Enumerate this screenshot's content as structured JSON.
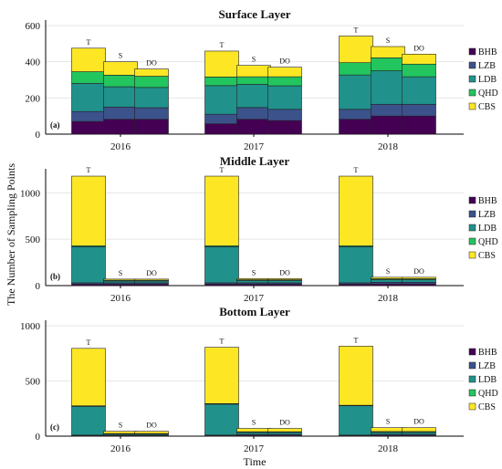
{
  "y_axis_label": "The Number of Sampling Points",
  "x_axis_label": "Time",
  "colors": {
    "BHB": "#440154",
    "LZB": "#3b528b",
    "LDB": "#21918c",
    "QHD": "#22c55e",
    "CBS": "#fde725"
  },
  "chart_data": [
    {
      "type": "bar",
      "stacked": true,
      "title": "Surface Layer",
      "panel_label": "(a)",
      "ylim": [
        0,
        600
      ],
      "yticks": [
        0,
        200,
        400,
        600
      ],
      "grid": true,
      "legend": "right",
      "stack_order": [
        "BHB",
        "LZB",
        "LDB",
        "QHD",
        "CBS"
      ],
      "groups": [
        "2016",
        "2017",
        "2018"
      ],
      "bars_per_group": [
        "T",
        "S",
        "DO"
      ],
      "values": {
        "2016": {
          "T": [
            70,
            55,
            155,
            65,
            130
          ],
          "S": [
            82,
            68,
            112,
            64,
            74
          ],
          "DO": [
            82,
            64,
            112,
            62,
            40
          ]
        },
        "2017": {
          "T": [
            57,
            53,
            158,
            48,
            143
          ],
          "S": [
            82,
            65,
            128,
            42,
            63
          ],
          "DO": [
            75,
            62,
            130,
            50,
            53
          ]
        },
        "2018": {
          "T": [
            82,
            55,
            190,
            68,
            147
          ],
          "S": [
            100,
            65,
            185,
            72,
            62
          ],
          "DO": [
            100,
            65,
            152,
            70,
            55
          ]
        }
      }
    },
    {
      "type": "bar",
      "stacked": true,
      "title": "Middle Layer",
      "panel_label": "(b)",
      "ylim": [
        0,
        1200
      ],
      "yticks": [
        0,
        500,
        1000
      ],
      "grid": true,
      "legend": "right",
      "stack_order": [
        "BHB",
        "LZB",
        "LDB",
        "QHD",
        "CBS"
      ],
      "groups": [
        "2016",
        "2017",
        "2018"
      ],
      "bars_per_group": [
        "T",
        "S",
        "DO"
      ],
      "values": {
        "2016": {
          "T": [
            15,
            15,
            390,
            10,
            750
          ],
          "S": [
            15,
            15,
            20,
            8,
            12
          ],
          "DO": [
            15,
            15,
            20,
            8,
            12
          ]
        },
        "2017": {
          "T": [
            15,
            15,
            390,
            10,
            750
          ],
          "S": [
            15,
            15,
            25,
            8,
            12
          ],
          "DO": [
            15,
            15,
            25,
            8,
            12
          ]
        },
        "2018": {
          "T": [
            15,
            15,
            390,
            10,
            750
          ],
          "S": [
            18,
            18,
            28,
            10,
            16
          ],
          "DO": [
            18,
            18,
            28,
            10,
            16
          ]
        }
      }
    },
    {
      "type": "bar",
      "stacked": true,
      "title": "Bottom Layer",
      "panel_label": "(c)",
      "ylim": [
        0,
        1000
      ],
      "yticks": [
        0,
        500,
        1000
      ],
      "grid": true,
      "legend": "right",
      "stack_order": [
        "BHB",
        "LZB",
        "LDB",
        "QHD",
        "CBS"
      ],
      "groups": [
        "2016",
        "2017",
        "2018"
      ],
      "bars_per_group": [
        "T",
        "S",
        "DO"
      ],
      "values": {
        "2016": {
          "T": [
            5,
            5,
            260,
            5,
            520
          ],
          "S": [
            5,
            5,
            10,
            4,
            20
          ],
          "DO": [
            5,
            5,
            10,
            4,
            20
          ]
        },
        "2017": {
          "T": [
            5,
            5,
            280,
            5,
            510
          ],
          "S": [
            8,
            8,
            18,
            6,
            30
          ],
          "DO": [
            8,
            8,
            18,
            6,
            30
          ]
        },
        "2018": {
          "T": [
            5,
            5,
            265,
            5,
            535
          ],
          "S": [
            8,
            8,
            18,
            8,
            35
          ],
          "DO": [
            8,
            8,
            18,
            8,
            35
          ]
        }
      }
    }
  ]
}
